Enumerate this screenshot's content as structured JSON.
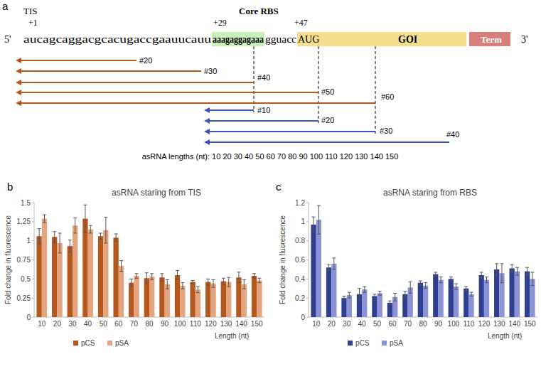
{
  "diagram": {
    "panel_label": "a",
    "tis": "TIS",
    "core_rbs": "Core RBS",
    "positions": [
      "+1",
      "+29",
      "+47"
    ],
    "five_prime": "5'",
    "three_prime": "3'",
    "sequence": {
      "leader": "aucagcaggacgcacugaccgaauucauu",
      "rbs": "aaagaggagaaa",
      "spacer": "gguacc",
      "start_codon": "AUG"
    },
    "gene": "GOI",
    "terminator": "Term",
    "tis_arrows": [
      "#20",
      "#30",
      "#40",
      "#50",
      "#60"
    ],
    "rbs_arrows": [
      "#10",
      "#20",
      "#30",
      "#40"
    ],
    "lengths_caption": "asRNA lengths (nt): 10 20 30 40 50 60 70 80 90 100 110 120 130 140 150"
  },
  "chart_data": [
    {
      "type": "bar",
      "title": "asRNA staring from TIS",
      "annotations": [
        "b"
      ],
      "y_label": "Fold change in fluorescence",
      "x_label": "Length (nt)",
      "categories": [
        "10",
        "20",
        "30",
        "40",
        "50",
        "60",
        "70",
        "80",
        "90",
        "100",
        "110",
        "120",
        "130",
        "140",
        "150"
      ],
      "series": [
        {
          "name": "pCS",
          "color": "#b5581e",
          "values": [
            1.06,
            1.05,
            0.93,
            1.29,
            1.06,
            1.04,
            0.45,
            0.51,
            0.52,
            0.55,
            0.46,
            0.46,
            0.47,
            0.52,
            0.54
          ],
          "errors": [
            0.1,
            0.07,
            0.08,
            0.18,
            0.04,
            0.05,
            0.05,
            0.07,
            0.05,
            0.06,
            0.02,
            0.04,
            0.04,
            0.07,
            0.03
          ]
        },
        {
          "name": "pSA",
          "color": "#e3a47e",
          "values": [
            1.29,
            0.97,
            1.2,
            1.15,
            1.14,
            0.67,
            0.54,
            0.53,
            0.43,
            0.41,
            0.36,
            0.44,
            0.46,
            0.43,
            0.48
          ],
          "errors": [
            0.05,
            0.13,
            0.1,
            0.05,
            0.17,
            0.07,
            0.03,
            0.04,
            0.06,
            0.04,
            0.04,
            0.05,
            0.06,
            0.06,
            0.03
          ]
        }
      ],
      "ylim": [
        0,
        1.5
      ],
      "yticks": [
        0,
        0.25,
        0.5,
        0.75,
        1,
        1.25,
        1.5
      ],
      "grid": false,
      "legend": "bottom"
    },
    {
      "type": "bar",
      "title": "asRNA staring from RBS",
      "annotations": [
        "c"
      ],
      "y_label": "Fold change in fluorescence",
      "x_label": "Length (nt)",
      "categories": [
        "10",
        "20",
        "30",
        "40",
        "50",
        "60",
        "70",
        "80",
        "90",
        "100",
        "110",
        "120",
        "130",
        "140",
        "150"
      ],
      "series": [
        {
          "name": "pCS",
          "color": "#2e3f8f",
          "values": [
            0.97,
            0.52,
            0.2,
            0.24,
            0.22,
            0.15,
            0.24,
            0.36,
            0.45,
            0.4,
            0.3,
            0.44,
            0.5,
            0.51,
            0.48
          ],
          "errors": [
            0.08,
            0.03,
            0.02,
            0.06,
            0.02,
            0.02,
            0.03,
            0.02,
            0.02,
            0.02,
            0.02,
            0.03,
            0.06,
            0.04,
            0.04
          ]
        },
        {
          "name": "pSA",
          "color": "#8b93d6",
          "values": [
            1.02,
            0.56,
            0.23,
            0.29,
            0.25,
            0.21,
            0.31,
            0.33,
            0.39,
            0.32,
            0.24,
            0.39,
            0.46,
            0.48,
            0.4
          ],
          "errors": [
            0.15,
            0.06,
            0.03,
            0.03,
            0.02,
            0.04,
            0.06,
            0.03,
            0.03,
            0.03,
            0.02,
            0.03,
            0.1,
            0.04,
            0.07
          ]
        }
      ],
      "ylim": [
        0,
        1.2
      ],
      "yticks": [
        0,
        0.2,
        0.4,
        0.6,
        0.8,
        1,
        1.2
      ],
      "grid": false,
      "legend": "bottom"
    }
  ]
}
